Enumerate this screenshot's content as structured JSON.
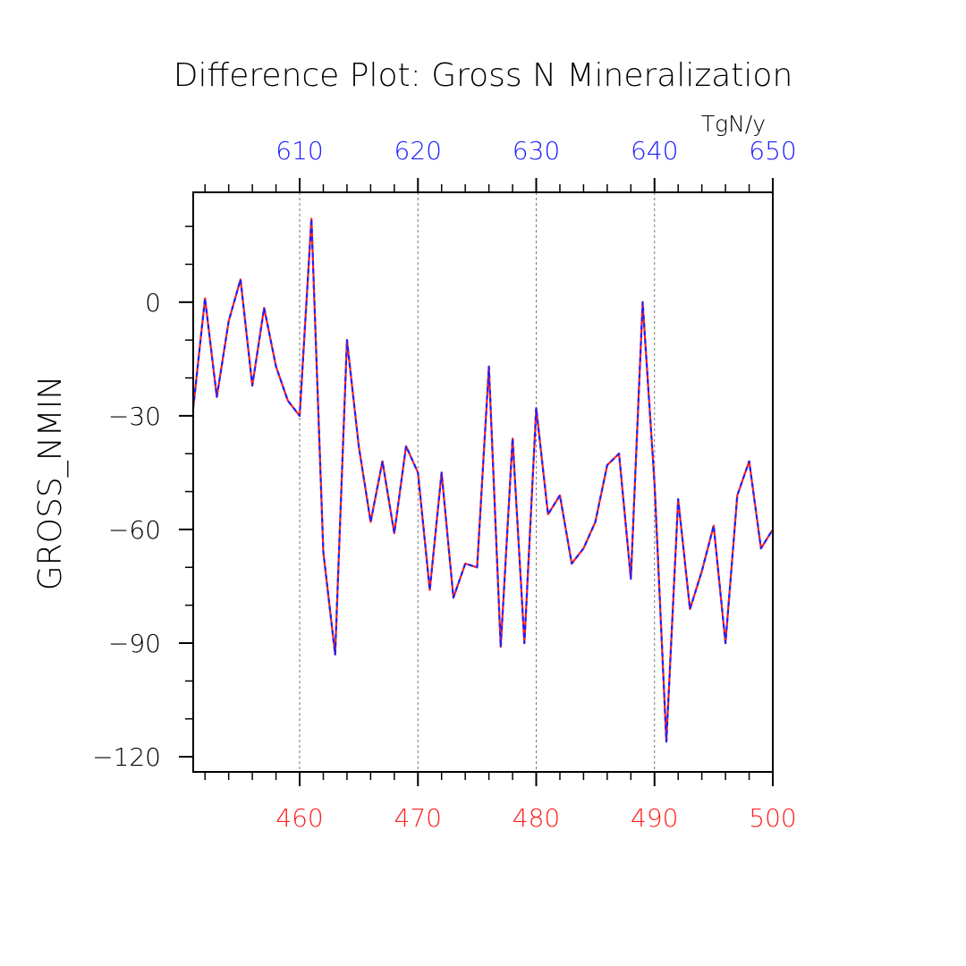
{
  "chart_data": {
    "type": "line",
    "title": "Difference Plot: Gross N Mineralization",
    "ylabel": "GROSS_NMIN",
    "top_axis_unit": "TgN/y",
    "xlim": [
      451,
      500
    ],
    "top_xlim": [
      601,
      650
    ],
    "ylim": [
      -124,
      29
    ],
    "x_ticks": [
      460,
      470,
      480,
      490,
      500
    ],
    "top_x_ticks": [
      610,
      620,
      630,
      640,
      650
    ],
    "y_ticks": [
      0,
      -30,
      -60,
      -90,
      -120
    ],
    "grid": "vertical dashed",
    "colors": {
      "bottom_axis": "#ff2020",
      "top_axis": "#2020ff",
      "line_a": "#ff2020",
      "line_b": "#2020ff",
      "axis": "#000000"
    },
    "x": [
      451,
      452,
      453,
      454,
      455,
      456,
      457,
      458,
      459,
      460,
      461,
      462,
      463,
      464,
      465,
      466,
      467,
      468,
      469,
      470,
      471,
      472,
      473,
      474,
      475,
      476,
      477,
      478,
      479,
      480,
      481,
      482,
      483,
      484,
      485,
      486,
      487,
      488,
      489,
      490,
      491,
      492,
      493,
      494,
      495,
      496,
      497,
      498,
      499,
      500
    ],
    "series": [
      {
        "values": [
          -28,
          1,
          -25,
          -5,
          6,
          -22,
          -1.5,
          -17,
          -26,
          -30,
          22,
          -66,
          -93,
          -10,
          -38,
          -58,
          -42,
          -61,
          -38,
          -45,
          -76,
          -45,
          -78,
          -69,
          -70,
          -17,
          -91,
          -36,
          -90,
          -28,
          -56,
          -51,
          -69,
          -65,
          -58,
          -43,
          -40,
          -73,
          0,
          -48,
          -116,
          -52,
          -81,
          -71,
          -59,
          -90,
          -51,
          -42,
          -65,
          -60
        ]
      },
      {
        "values": [
          -28,
          1,
          -25,
          -5,
          6,
          -22,
          -1.5,
          -17,
          -26,
          -30,
          22,
          -66,
          -93,
          -10,
          -38,
          -58,
          -42,
          -61,
          -38,
          -45,
          -76,
          -45,
          -78,
          -69,
          -70,
          -17,
          -91,
          -36,
          -90,
          -28,
          -56,
          -51,
          -69,
          -65,
          -58,
          -43,
          -40,
          -73,
          0,
          -48,
          -116,
          -52,
          -81,
          -71,
          -59,
          -90,
          -51,
          -42,
          -65,
          -60
        ]
      }
    ]
  }
}
